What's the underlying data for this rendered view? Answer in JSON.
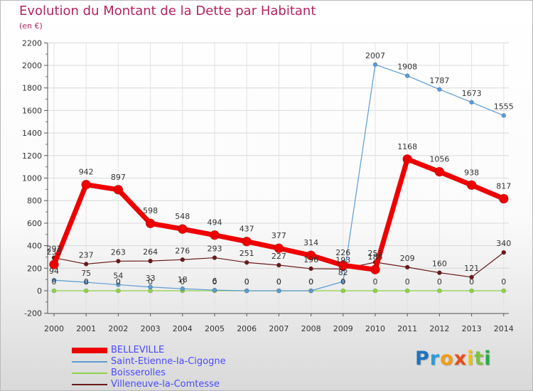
{
  "chart_data": {
    "type": "line",
    "title": "Evolution du Montant de la Dette par Habitant",
    "subtitle": "(en €)",
    "x": [
      "2000",
      "2001",
      "2002",
      "2003",
      "2004",
      "2005",
      "2006",
      "2007",
      "2008",
      "2009",
      "2010",
      "2011",
      "2012",
      "2013",
      "2014"
    ],
    "ylim": [
      -200,
      2200
    ],
    "yticks": [
      "-200",
      "0",
      "200",
      "400",
      "600",
      "800",
      "1000",
      "1200",
      "1400",
      "1600",
      "1800",
      "2000",
      "2200"
    ],
    "grid": true,
    "legend_position": "bottom-left",
    "series": [
      {
        "name": "BELLEVILLE",
        "color": "#ee0000",
        "labelColor": "#333333",
        "values": [
          233,
          942,
          897,
          598,
          548,
          494,
          437,
          377,
          314,
          226,
          188,
          1168,
          1056,
          938,
          817
        ],
        "labels": [
          "233",
          "942",
          "897",
          "598",
          "548",
          "494",
          "437",
          "377",
          "314",
          "226",
          "188",
          "1168",
          "1056",
          "938",
          "817"
        ]
      },
      {
        "name": "Saint-Etienne-la-Cigogne",
        "color": "#5b9bd5",
        "labelColor": "#333333",
        "values": [
          94,
          75,
          54,
          33,
          18,
          6,
          0,
          0,
          0,
          82,
          2007,
          1908,
          1787,
          1673,
          1555
        ],
        "labels": [
          "94",
          "75",
          "54",
          "33",
          "18",
          "6",
          "0",
          "0",
          "0",
          "82",
          "2007",
          "1908",
          "1787",
          "1673",
          "1555"
        ]
      },
      {
        "name": "Boisserolles",
        "color": "#8fd24a",
        "labelColor": "#333333",
        "values": [
          0,
          0,
          0,
          0,
          0,
          0,
          0,
          0,
          0,
          0,
          0,
          0,
          0,
          0,
          0
        ],
        "labels": [
          "0",
          "0",
          "0",
          "0",
          "0",
          "0",
          "0",
          "0",
          "0",
          "0",
          "0",
          "0",
          "0",
          "0",
          "0"
        ]
      },
      {
        "name": "Villeneuve-la-Comtesse",
        "color": "#6b1a1a",
        "labelColor": "#333333",
        "values": [
          293,
          237,
          263,
          264,
          276,
          293,
          251,
          227,
          196,
          193,
          253,
          209,
          160,
          121,
          340
        ],
        "labels": [
          "293",
          "237",
          "263",
          "264",
          "276",
          "293",
          "251",
          "227",
          "196",
          "193",
          "253",
          "209",
          "160",
          "121",
          "340"
        ]
      }
    ]
  },
  "logo": {
    "letters": [
      "P",
      "r",
      "o",
      "x",
      "i",
      "t",
      "i"
    ],
    "colors": [
      "#1e73be",
      "#2a9bd8",
      "#f39c12",
      "#e84c1b",
      "#f2c200",
      "#7cc242",
      "#2aa84a"
    ]
  }
}
